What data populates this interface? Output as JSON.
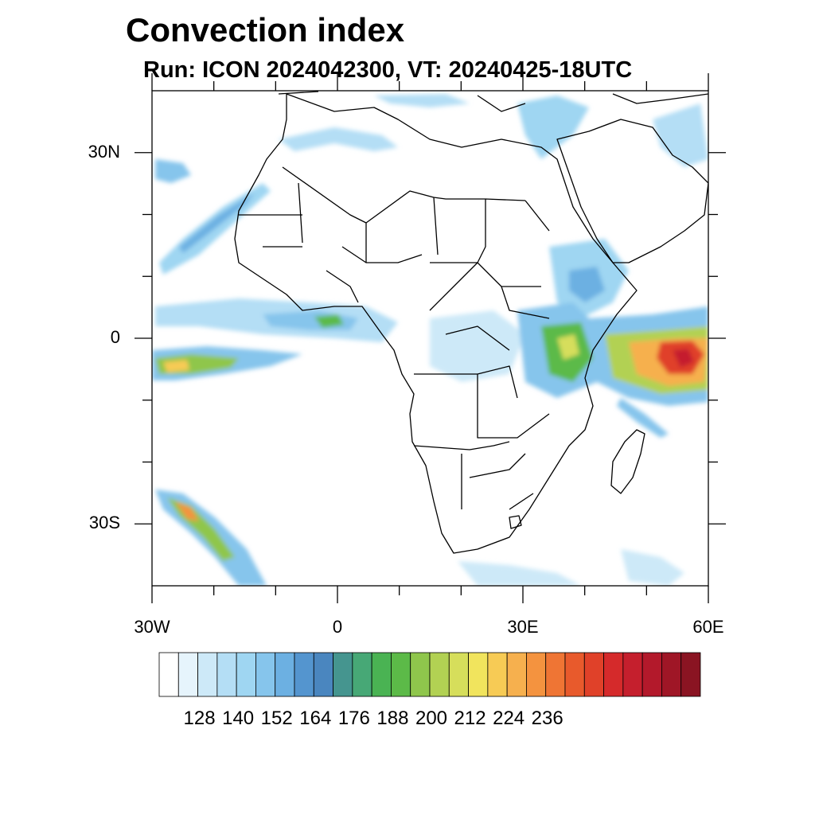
{
  "title": "Convection index",
  "subtitle": "Run: ICON 2024042300,  VT: 20240425-18UTC",
  "axes": {
    "lat_ticks": [
      {
        "label": "30N",
        "value": 30
      },
      {
        "label": "0",
        "value": 0
      },
      {
        "label": "30S",
        "value": -30
      }
    ],
    "lon_ticks": [
      {
        "label": "30W",
        "value": -30
      },
      {
        "label": "0",
        "value": 0
      },
      {
        "label": "30E",
        "value": 30
      },
      {
        "label": "60E",
        "value": 60
      }
    ],
    "lon_range": [
      -30,
      60
    ],
    "lat_range": [
      -40,
      40
    ]
  },
  "colorbar": {
    "labels": [
      "128",
      "140",
      "152",
      "164",
      "176",
      "188",
      "200",
      "212",
      "224",
      "236"
    ],
    "colors": [
      "#ffffff",
      "#e6f4fc",
      "#cde9f8",
      "#b4def5",
      "#9fd6f2",
      "#86c5ec",
      "#6cb0e2",
      "#5495cf",
      "#4a86bf",
      "#45958f",
      "#47a876",
      "#4ab353",
      "#5cba48",
      "#8fc64c",
      "#b2d153",
      "#d6de5b",
      "#f1e45d",
      "#f7cb55",
      "#f6b04e",
      "#f4933f",
      "#ef7534",
      "#e85a2c",
      "#e04129",
      "#d52a2b",
      "#c51f2d",
      "#b3192b",
      "#9f1626",
      "#8a1422"
    ]
  }
}
